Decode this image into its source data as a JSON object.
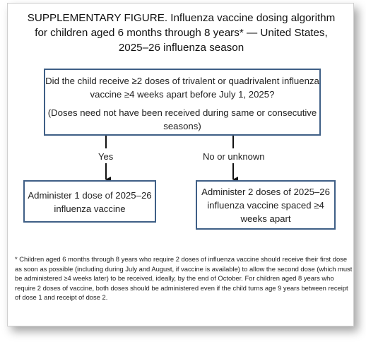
{
  "title": "SUPPLEMENTARY FIGURE. Influenza vaccine dosing algorithm for children aged 6 months through 8 years* — United States, 2025–26 influenza season",
  "question": {
    "text": "Did the child receive ≥2 doses of trivalent or quadrivalent influenza vaccine ≥4 weeks apart before July 1, 2025?",
    "note": "(Doses need not have been received during same or consecutive seasons)"
  },
  "branches": {
    "yes": {
      "label": "Yes",
      "outcome": "Administer 1 dose of 2025–26 influenza vaccine"
    },
    "no": {
      "label": "No or unknown",
      "outcome": "Administer 2 doses of 2025–26 influenza vaccine spaced ≥4 weeks apart"
    }
  },
  "footnote": "* Children aged 6 months through 8 years who require 2 doses of influenza vaccine should receive their first dose as soon as possible (including during July and August, if vaccine is available) to allow the second dose (which must be administered ≥4 weeks later) to be received, ideally, by the end of October. For children aged 8 years who require 2 doses of vaccine, both doses should be administered even if the child turns age 9 years between receipt of dose 1 and receipt of dose 2.",
  "colors": {
    "box_border": "#3f5f86",
    "arrow": "#111111"
  }
}
